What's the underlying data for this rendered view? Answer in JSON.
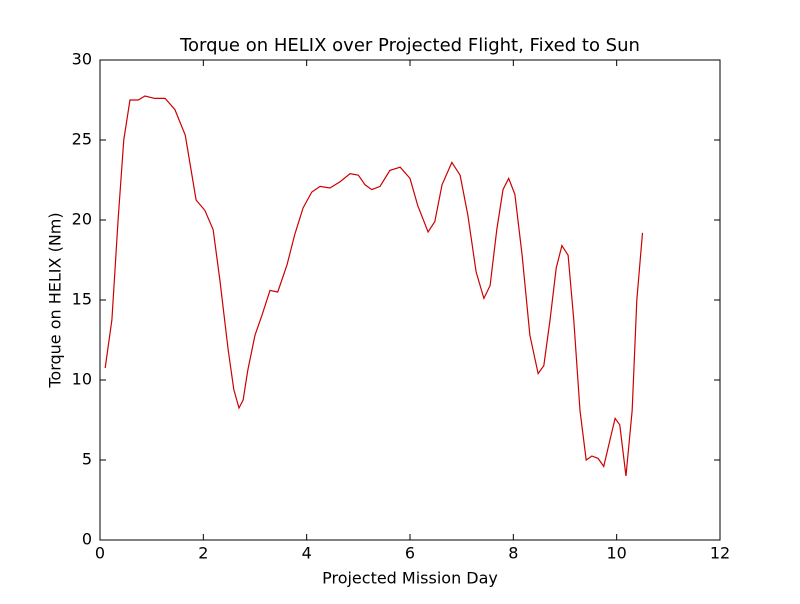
{
  "chart_data": {
    "type": "line",
    "title": "Torque on HELIX over Projected Flight, Fixed to Sun",
    "x_label": "Projected Mission Day",
    "y_label": "Torque on HELIX (Nm)",
    "xlim": [
      0,
      12
    ],
    "xticks": [
      0,
      2,
      4,
      6,
      8,
      10,
      12
    ],
    "ylim": [
      0,
      30
    ],
    "yticks": [
      0,
      5,
      10,
      15,
      20,
      25,
      30
    ],
    "grid": false,
    "series": [
      {
        "color": "#cc0000",
        "x": [
          0.1,
          0.23,
          0.35,
          0.46,
          0.58,
          0.74,
          0.87,
          1.06,
          1.26,
          1.45,
          1.65,
          1.86,
          2.03,
          2.19,
          2.32,
          2.48,
          2.59,
          2.69,
          2.77,
          2.86,
          3.0,
          3.14,
          3.29,
          3.44,
          3.62,
          3.77,
          3.93,
          4.1,
          4.26,
          4.45,
          4.65,
          4.84,
          5.0,
          5.13,
          5.26,
          5.42,
          5.61,
          5.81,
          6.0,
          6.15,
          6.35,
          6.48,
          6.62,
          6.81,
          6.97,
          7.12,
          7.28,
          7.43,
          7.55,
          7.68,
          7.8,
          7.91,
          8.03,
          8.17,
          8.32,
          8.48,
          8.59,
          8.71,
          8.83,
          8.94,
          9.06,
          9.17,
          9.29,
          9.41,
          9.52,
          9.64,
          9.75,
          9.87,
          9.97,
          10.06,
          10.18,
          10.3,
          10.39,
          10.5
        ],
        "values": [
          10.75,
          13.75,
          20,
          25,
          27.5,
          27.5,
          27.75,
          27.6,
          27.6,
          26.9,
          25.3,
          21.25,
          20.6,
          19.4,
          16.25,
          11.9,
          9.4,
          8.25,
          8.75,
          10.6,
          12.8,
          14.1,
          15.6,
          15.5,
          17.2,
          19.1,
          20.75,
          21.75,
          22.1,
          22,
          22.4,
          22.9,
          22.8,
          22.2,
          21.9,
          22.1,
          23.1,
          23.3,
          22.6,
          20.9,
          19.25,
          19.9,
          22.2,
          23.6,
          22.8,
          20.3,
          16.75,
          15.1,
          15.9,
          19.4,
          21.9,
          22.6,
          21.6,
          17.8,
          12.8,
          10.4,
          10.9,
          13.75,
          17,
          18.4,
          17.8,
          13.75,
          8.1,
          5,
          5.25,
          5.1,
          4.6,
          6.25,
          7.6,
          7.2,
          4,
          8.1,
          15,
          19.2
        ]
      }
    ]
  }
}
